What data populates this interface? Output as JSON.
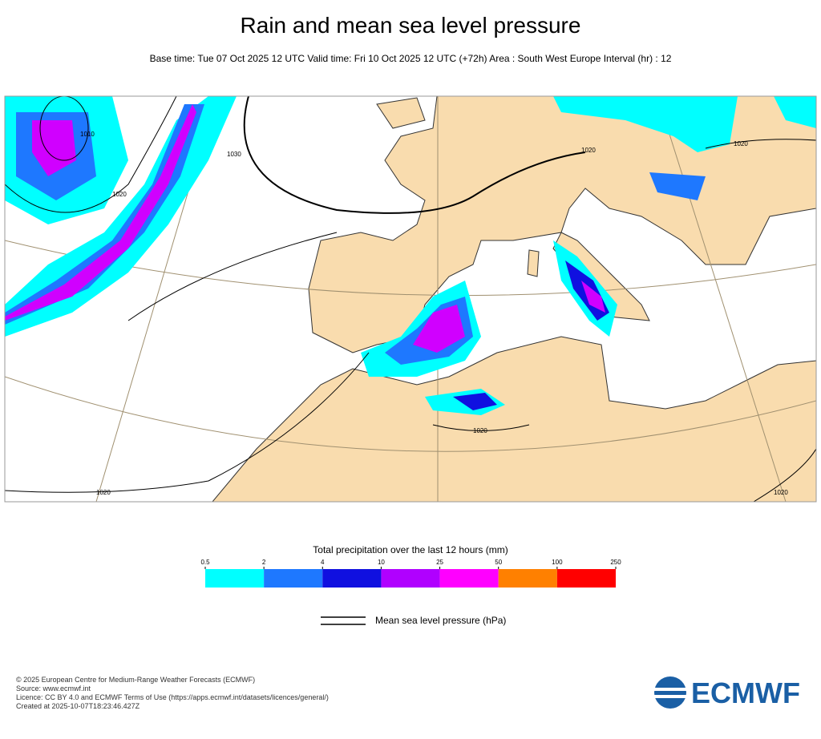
{
  "title": "Rain and mean sea level pressure",
  "subtitle": "Base time: Tue 07 Oct 2025 12 UTC Valid time: Fri 10 Oct 2025 12 UTC (+72h) Area : South West Europe Interval (hr) : 12",
  "map": {
    "isobar_labels": [
      "1010",
      "1020",
      "1030",
      "1020",
      "1020",
      "1020",
      "1020",
      "1020"
    ]
  },
  "colorbar": {
    "title": "Total precipitation over the last 12 hours (mm)",
    "ticks": [
      0.5,
      2,
      4,
      10,
      25,
      50,
      100,
      250
    ],
    "colors": [
      "#00ffff",
      "#1e78ff",
      "#1010e0",
      "#b000ff",
      "#ff00ff",
      "#ff8000",
      "#ff0000"
    ]
  },
  "legend": {
    "line_label": "Mean sea level pressure (hPa)"
  },
  "footer": [
    "© 2025 European Centre for Medium-Range Weather Forecasts (ECMWF)",
    "Source: www.ecmwf.int",
    "Licence: CC BY 4.0 and ECMWF Terms of Use (https://apps.ecmwf.int/datasets/licences/general/)",
    "Created at 2025-10-07T18:23:46.427Z"
  ],
  "logo": "ECMWF"
}
